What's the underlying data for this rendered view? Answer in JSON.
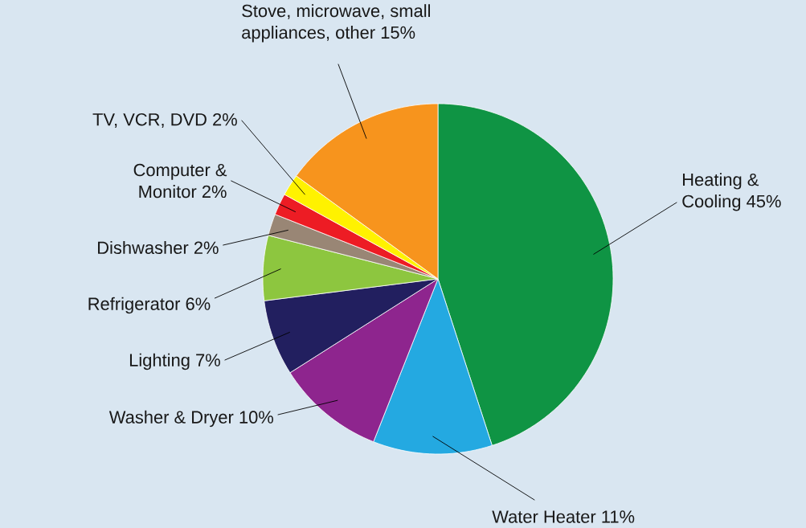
{
  "chart_data": {
    "type": "pie",
    "categories": [
      "Heating & Cooling",
      "Water Heater",
      "Washer & Dryer",
      "Lighting",
      "Refrigerator",
      "Dishwasher",
      "Computer & Monitor",
      "TV, VCR, DVD",
      "Stove, microwave, small appliances, other"
    ],
    "values": [
      45,
      11,
      10,
      7,
      6,
      2,
      2,
      2,
      15
    ],
    "value_labels": [
      "45%",
      "11%",
      "10%",
      "7%",
      "6%",
      "2%",
      "2%",
      "2%",
      "15%"
    ],
    "colors": [
      "#0f9444",
      "#24a9e1",
      "#8e258e",
      "#221f5f",
      "#8dc63f",
      "#998675",
      "#ed1c24",
      "#fff200",
      "#f7941d"
    ]
  }
}
